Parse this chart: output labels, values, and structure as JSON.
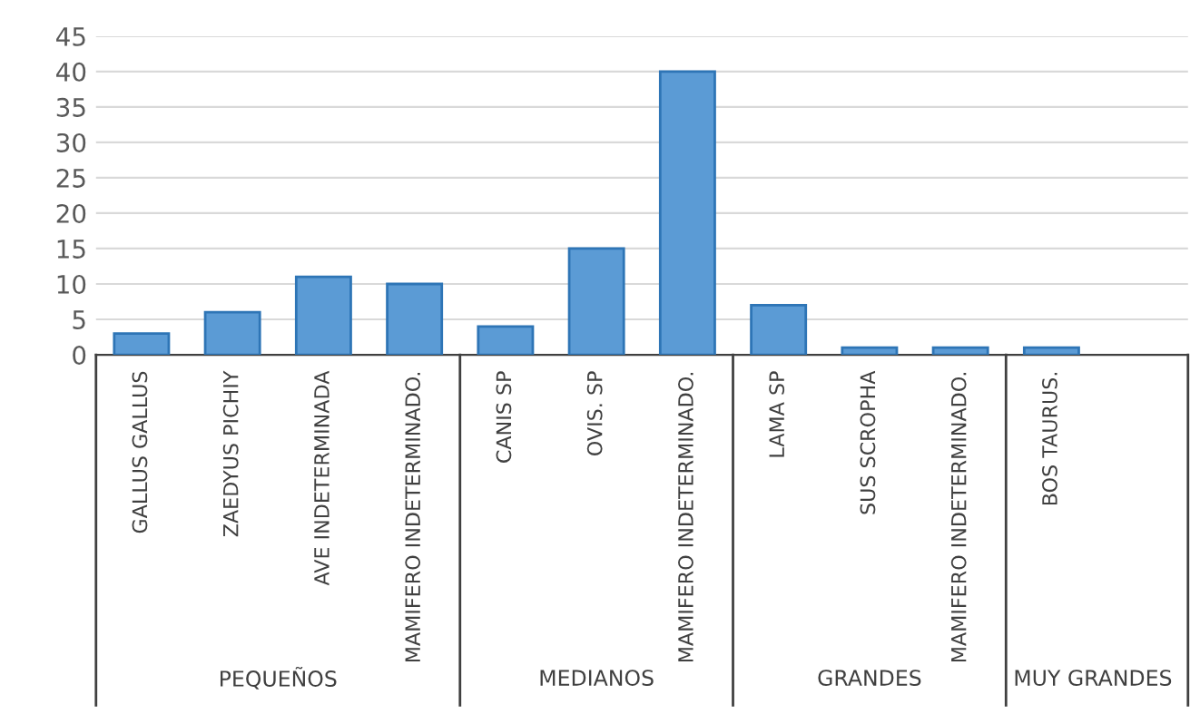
{
  "chart_data": {
    "type": "bar",
    "categories": [
      "GALLUS GALLUS",
      "ZAEDYUS PICHIY",
      "AVE INDETERMINADA",
      "MAMIFERO INDETERMINADO.",
      "CANIS SP",
      "OVIS. SP",
      "MAMIFERO INDETERMINADO.",
      "LAMA SP",
      "SUS SCROPHA",
      "MAMIFERO INDETERMINADO.",
      "BOS TAURUS."
    ],
    "values": [
      3,
      6,
      11,
      10,
      4,
      15,
      40,
      7,
      1,
      1,
      1
    ],
    "color": "#5b9bd5",
    "ylim": [
      0,
      45
    ],
    "yticks": [
      0,
      5,
      10,
      15,
      20,
      25,
      30,
      35,
      40,
      45
    ],
    "grid": "y",
    "annotations": [
      "PEQUEÑOS",
      "MEDIANOS",
      "GRANDES",
      "MUY GRANDES"
    ]
  }
}
